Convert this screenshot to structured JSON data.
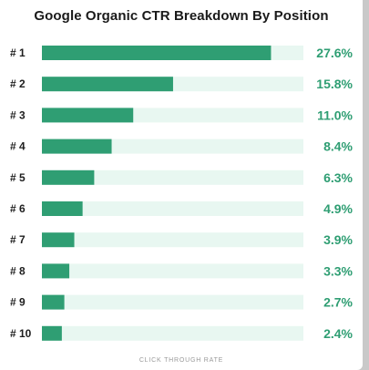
{
  "colors": {
    "bar": "#2f9e73",
    "track": "#e8f7f1",
    "value_text": "#2f9e73",
    "frame": "#c9c9c9"
  },
  "chart_data": {
    "type": "bar",
    "orientation": "horizontal",
    "title": "Google Organic CTR Breakdown By Position",
    "xlabel": "CLICK THROUGH RATE",
    "ylabel": "",
    "categories": [
      "# 1",
      "# 2",
      "# 3",
      "# 4",
      "# 5",
      "# 6",
      "# 7",
      "# 8",
      "# 9",
      "# 10"
    ],
    "values": [
      27.6,
      15.8,
      11.0,
      8.4,
      6.3,
      4.9,
      3.9,
      3.3,
      2.7,
      2.4
    ],
    "value_labels": [
      "27.6%",
      "15.8%",
      "11.0%",
      "8.4%",
      "6.3%",
      "4.9%",
      "3.9%",
      "3.3%",
      "2.7%",
      "2.4%"
    ],
    "xlim": [
      0,
      31.5
    ],
    "grid": false,
    "legend": "none"
  }
}
